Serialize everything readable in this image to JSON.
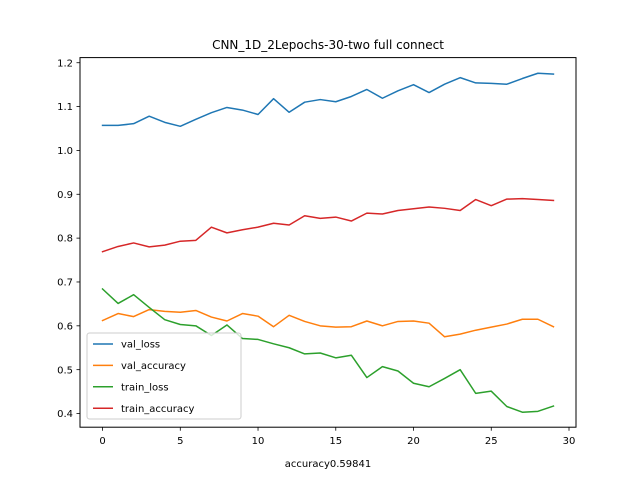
{
  "chart_data": {
    "type": "line",
    "title": "CNN_1D_2Lepochs-30-two full connect",
    "xlabel": "accuracy0.59841",
    "ylabel": "",
    "xlim": [
      -1.45,
      30.45
    ],
    "ylim": [
      0.3688,
      1.2117
    ],
    "xticks": [
      0,
      5,
      10,
      15,
      20,
      25,
      30
    ],
    "yticks": [
      0.4,
      0.5,
      0.6,
      0.7,
      0.8,
      0.9,
      1.0,
      1.1,
      1.2
    ],
    "ytick_labels": [
      "0.4",
      "0.5",
      "0.6",
      "0.7",
      "0.8",
      "0.9",
      "1.0",
      "1.1",
      "1.2"
    ],
    "x": [
      0,
      1,
      2,
      3,
      4,
      5,
      6,
      7,
      8,
      9,
      10,
      11,
      12,
      13,
      14,
      15,
      16,
      17,
      18,
      19,
      20,
      21,
      22,
      23,
      24,
      25,
      26,
      27,
      28,
      29
    ],
    "series": [
      {
        "name": "val_loss",
        "color": "#1f77b4",
        "values": [
          1.057,
          1.057,
          1.061,
          1.078,
          1.064,
          1.055,
          1.071,
          1.086,
          1.098,
          1.092,
          1.082,
          1.118,
          1.087,
          1.11,
          1.116,
          1.111,
          1.123,
          1.139,
          1.119,
          1.136,
          1.15,
          1.132,
          1.151,
          1.166,
          1.154,
          1.153,
          1.151,
          1.164,
          1.176,
          1.174
        ]
      },
      {
        "name": "val_accuracy",
        "color": "#ff7f0e",
        "values": [
          0.612,
          0.628,
          0.621,
          0.637,
          0.633,
          0.631,
          0.635,
          0.62,
          0.611,
          0.628,
          0.622,
          0.598,
          0.624,
          0.61,
          0.6,
          0.597,
          0.598,
          0.611,
          0.6,
          0.61,
          0.611,
          0.606,
          0.575,
          0.581,
          0.59,
          0.597,
          0.604,
          0.615,
          0.615,
          0.598
        ]
      },
      {
        "name": "train_loss",
        "color": "#2ca02c",
        "values": [
          0.684,
          0.651,
          0.671,
          0.642,
          0.614,
          0.603,
          0.6,
          0.578,
          0.602,
          0.571,
          0.569,
          0.559,
          0.55,
          0.536,
          0.538,
          0.527,
          0.533,
          0.482,
          0.507,
          0.497,
          0.469,
          0.461,
          0.48,
          0.5,
          0.446,
          0.451,
          0.416,
          0.403,
          0.405,
          0.417
        ]
      },
      {
        "name": "train_accuracy",
        "color": "#d62728",
        "values": [
          0.769,
          0.781,
          0.789,
          0.78,
          0.784,
          0.793,
          0.795,
          0.825,
          0.812,
          0.819,
          0.825,
          0.834,
          0.83,
          0.851,
          0.845,
          0.848,
          0.839,
          0.857,
          0.855,
          0.863,
          0.867,
          0.871,
          0.868,
          0.863,
          0.888,
          0.874,
          0.889,
          0.89,
          0.888,
          0.886
        ]
      }
    ],
    "legend_position": "lower-left"
  }
}
